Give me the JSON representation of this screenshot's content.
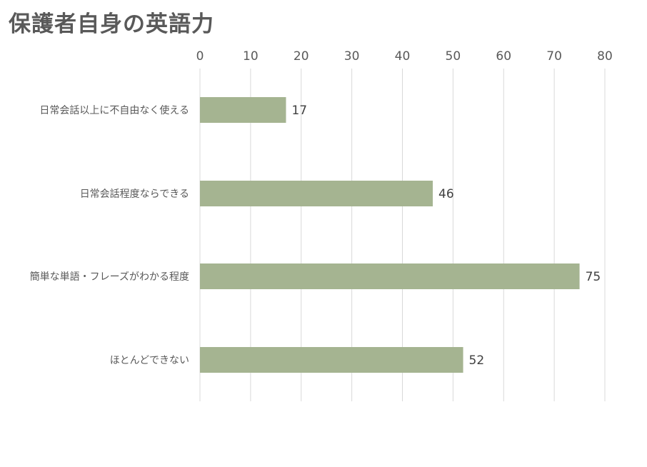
{
  "chart_data": {
    "type": "bar",
    "orientation": "horizontal",
    "title": "保護者自身の英語力",
    "categories": [
      "日常会話以上に不自由なく使える",
      "日常会話程度ならできる",
      "簡単な単語・フレーズがわかる程度",
      "ほとんどできない"
    ],
    "values": [
      17,
      46,
      75,
      52
    ],
    "xlim": [
      0,
      80
    ],
    "xticks": [
      0,
      10,
      20,
      30,
      40,
      50,
      60,
      70,
      80
    ],
    "xaxis_position": "top",
    "grid": true,
    "data_labels": true,
    "bar_color": "#a5b491",
    "legend": "none"
  }
}
